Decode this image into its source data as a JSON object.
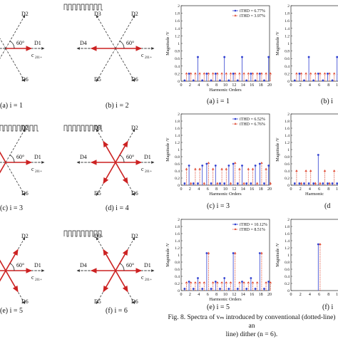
{
  "colors": {
    "vector": "#cc2222",
    "axis": "#222222",
    "blue": "#2f3fd0",
    "red": "#e0503a",
    "dashed": "#333333"
  },
  "vector_diagrams": [
    {
      "id": "a",
      "caption": "(a) i = 1",
      "labels": {
        "d2": "D2",
        "d6": "D6",
        "d1": "D1",
        "angle": "60°",
        "c": "c",
        "c_sub": "2l1+"
      }
    },
    {
      "id": "b",
      "caption": "(b) i = 2",
      "labels": {
        "d3": "D3",
        "d2": "D2",
        "d4": "D4",
        "d5": "D5",
        "d6": "D6",
        "angle": "60°",
        "c": "c",
        "c_sub": "2l1+"
      }
    },
    {
      "id": "c",
      "caption": "(c) i = 3",
      "labels": {
        "d2": "D2",
        "d1": "D1",
        "d6": "D6",
        "angle": "60°",
        "c": "c",
        "c_sub": "2l1+"
      }
    },
    {
      "id": "d",
      "caption": "(d) i = 4",
      "labels": {
        "d3": "D3",
        "d2": "D2",
        "d4": "D4",
        "d1": "D1",
        "d5": "D5",
        "d6": "D6",
        "angle": "60°",
        "c": "c",
        "c_sub": "2l1+"
      }
    },
    {
      "id": "e",
      "caption": "(e) i = 5",
      "labels": {
        "d2": "D2",
        "d1": "D1",
        "d6": "D6",
        "angle": "60°",
        "c": "c",
        "c_sub": "2l1+"
      }
    },
    {
      "id": "f",
      "caption": "(f) i = 6",
      "labels": {
        "d3": "D3",
        "d2": "D2",
        "d4": "D4",
        "d1": "D1",
        "d5": "D5",
        "d6": "D6",
        "angle": "60°",
        "c": "c",
        "c_sub": "2l1+"
      }
    }
  ],
  "spectra_captions": {
    "a": "(a) i = 1",
    "b": "(b) i",
    "c": "(c) i = 3",
    "d": "(d",
    "e": "(e) i = 5",
    "f": "(f) i"
  },
  "figure_caption": {
    "line1": "Fig. 8. Spectra of vₘ introduced by conventional (dotted-line) an",
    "line2": "line) dither (n = 6)."
  },
  "chart_data": [
    {
      "id": "a",
      "type": "bar",
      "xlabel": "Harmonic Orders",
      "ylabel": "Magnitude /V",
      "ylim": [
        0,
        2
      ],
      "ytick_labels": [
        "0",
        "0.2",
        "0.4",
        "0.6",
        "0.8",
        "1",
        "1.2",
        "1.4",
        "1.6",
        "1.8",
        "2"
      ],
      "xtick_labels": [
        "0",
        "2",
        "4",
        "6",
        "8",
        "10",
        "12",
        "14",
        "16",
        "18",
        "20"
      ],
      "legend": [
        "iTHD = 6.77%",
        "iTHD = 3.97%"
      ],
      "x": [
        1,
        2,
        3,
        4,
        5,
        6,
        7,
        8,
        9,
        10,
        11,
        12,
        13,
        14,
        15,
        16,
        17,
        18,
        19,
        20
      ],
      "series": [
        {
          "name": "iTHD = 6.77%",
          "values": [
            0.02,
            0.2,
            0.02,
            0.64,
            0.02,
            0.2,
            0.02,
            0.2,
            0.02,
            0.64,
            0.02,
            0.2,
            0.02,
            0.64,
            0.02,
            0.2,
            0.02,
            0.2,
            0.02,
            0.64
          ]
        },
        {
          "name": "iTHD = 3.97%",
          "values": [
            0.2,
            0.2,
            0.2,
            0.2,
            0.2,
            0.2,
            0.2,
            0.2,
            0.2,
            0.2,
            0.2,
            0.2,
            0.2,
            0.2,
            0.2,
            0.2,
            0.2,
            0.2,
            0.2,
            0.2
          ]
        }
      ]
    },
    {
      "id": "c",
      "type": "bar",
      "xlabel": "Harmonic Orders",
      "ylabel": "Magnitude /V",
      "ylim": [
        0,
        2
      ],
      "ytick_labels": [
        "0",
        "0.2",
        "0.4",
        "0.6",
        "0.8",
        "1",
        "1.2",
        "1.4",
        "1.6",
        "1.8",
        "2"
      ],
      "xtick_labels": [
        "0",
        "2",
        "4",
        "6",
        "8",
        "10",
        "12",
        "14",
        "16",
        "18",
        "20"
      ],
      "legend": [
        "iTHD = 6.52%",
        "iTHD = 6.76%"
      ],
      "x": [
        1,
        2,
        3,
        4,
        5,
        6,
        7,
        8,
        9,
        10,
        11,
        12,
        13,
        14,
        15,
        16,
        17,
        18,
        19,
        20
      ],
      "series": [
        {
          "name": "iTHD = 6.52%",
          "values": [
            0.05,
            0.55,
            0.05,
            0.05,
            0.55,
            0.6,
            0.05,
            0.55,
            0.05,
            0.05,
            0.55,
            0.6,
            0.05,
            0.55,
            0.05,
            0.05,
            0.55,
            0.6,
            0.05,
            0.55
          ]
        },
        {
          "name": "iTHD = 6.76%",
          "values": [
            0.45,
            0.05,
            0.45,
            0.45,
            0.05,
            0.62,
            0.45,
            0.05,
            0.45,
            0.45,
            0.05,
            0.62,
            0.45,
            0.05,
            0.45,
            0.45,
            0.05,
            0.62,
            0.45,
            0.05
          ]
        }
      ]
    },
    {
      "id": "e",
      "type": "bar",
      "xlabel": "Harmonic Orders",
      "ylabel": "Magnitude /V",
      "ylim": [
        0,
        2
      ],
      "ytick_labels": [
        "0",
        "0.2",
        "0.4",
        "0.6",
        "0.8",
        "1",
        "1.2",
        "1.4",
        "1.6",
        "1.8",
        "2"
      ],
      "xtick_labels": [
        "0",
        "2",
        "4",
        "6",
        "8",
        "10",
        "12",
        "14",
        "16",
        "18",
        "20"
      ],
      "legend": [
        "iTHD = 10.12%",
        "iTHD = 8.51%"
      ],
      "x": [
        1,
        2,
        3,
        4,
        5,
        6,
        7,
        8,
        9,
        10,
        11,
        12,
        13,
        14,
        15,
        16,
        17,
        18,
        19,
        20
      ],
      "series": [
        {
          "name": "iTHD = 10.12%",
          "values": [
            0.05,
            0.25,
            0.05,
            0.35,
            0.05,
            1.05,
            0.05,
            0.25,
            0.05,
            0.35,
            0.05,
            1.05,
            0.05,
            0.25,
            0.05,
            0.35,
            0.05,
            1.05,
            0.05,
            0.25
          ]
        },
        {
          "name": "iTHD = 8.51%",
          "values": [
            0.22,
            0.22,
            0.22,
            0.22,
            0.22,
            1.05,
            0.22,
            0.22,
            0.22,
            0.22,
            0.22,
            1.05,
            0.22,
            0.22,
            0.22,
            0.22,
            0.22,
            1.05,
            0.22,
            0.22
          ]
        }
      ]
    },
    {
      "id": "b",
      "partial": true,
      "type": "bar",
      "ylabel": "Magnitude /V",
      "ylim": [
        0,
        2
      ],
      "ytick_labels": [
        "0",
        "0.2",
        "0.4",
        "0.6",
        "0.8",
        "1",
        "1.2",
        "1.4",
        "1.6",
        "1.8",
        "2"
      ],
      "xtick_labels": [
        "0",
        "2",
        "4",
        "6",
        "8",
        "10"
      ],
      "x": [
        1,
        2,
        3,
        4,
        5,
        6,
        7,
        8,
        9,
        10
      ],
      "series": [
        {
          "values": [
            0.02,
            0.2,
            0.02,
            0.64,
            0.02,
            0.2,
            0.02,
            0.2,
            0.02,
            0.64
          ]
        },
        {
          "values": [
            0.2,
            0.2,
            0.2,
            0.2,
            0.2,
            0.2,
            0.2,
            0.2,
            0.2,
            0.2
          ]
        }
      ]
    },
    {
      "id": "d",
      "partial": true,
      "type": "bar",
      "ylabel": "Magnitude /V",
      "ylim": [
        0,
        2
      ],
      "ytick_labels": [
        "0",
        "0.2",
        "0.4",
        "0.6",
        "0.8",
        "1",
        "1.2",
        "1.4",
        "1.6",
        "1.8",
        "2"
      ],
      "xtick_labels": [
        "0",
        "2",
        "4",
        "6",
        "8",
        "10"
      ],
      "xlabel": "Harmonic",
      "x": [
        1,
        2,
        3,
        4,
        5,
        6,
        7,
        8,
        9,
        10
      ],
      "series": [
        {
          "values": [
            0.05,
            0.05,
            0.05,
            0.05,
            0.05,
            0.85,
            0.05,
            0.05,
            0.05,
            0.05
          ]
        },
        {
          "values": [
            0.4,
            0.05,
            0.4,
            0.4,
            0.05,
            0.05,
            0.4,
            0.05,
            0.4,
            0.4
          ]
        }
      ]
    },
    {
      "id": "f",
      "partial": true,
      "type": "bar",
      "ylabel": "Magnitude /V",
      "ylim": [
        0,
        2
      ],
      "ytick_labels": [
        "0",
        "0.2",
        "0.4",
        "0.6",
        "0.8",
        "1",
        "1.2",
        "1.4",
        "1.6",
        "1.8",
        "2"
      ],
      "xtick_labels": [
        "0",
        "2",
        "4",
        "6",
        "8",
        "10"
      ],
      "x": [
        1,
        2,
        3,
        4,
        5,
        6,
        7,
        8,
        9,
        10
      ],
      "series": [
        {
          "values": [
            0,
            0,
            0,
            0,
            0,
            1.3,
            0,
            0,
            0,
            0
          ]
        },
        {
          "values": [
            0,
            0,
            0,
            0,
            0,
            1.3,
            0,
            0,
            0,
            0
          ]
        }
      ]
    }
  ]
}
